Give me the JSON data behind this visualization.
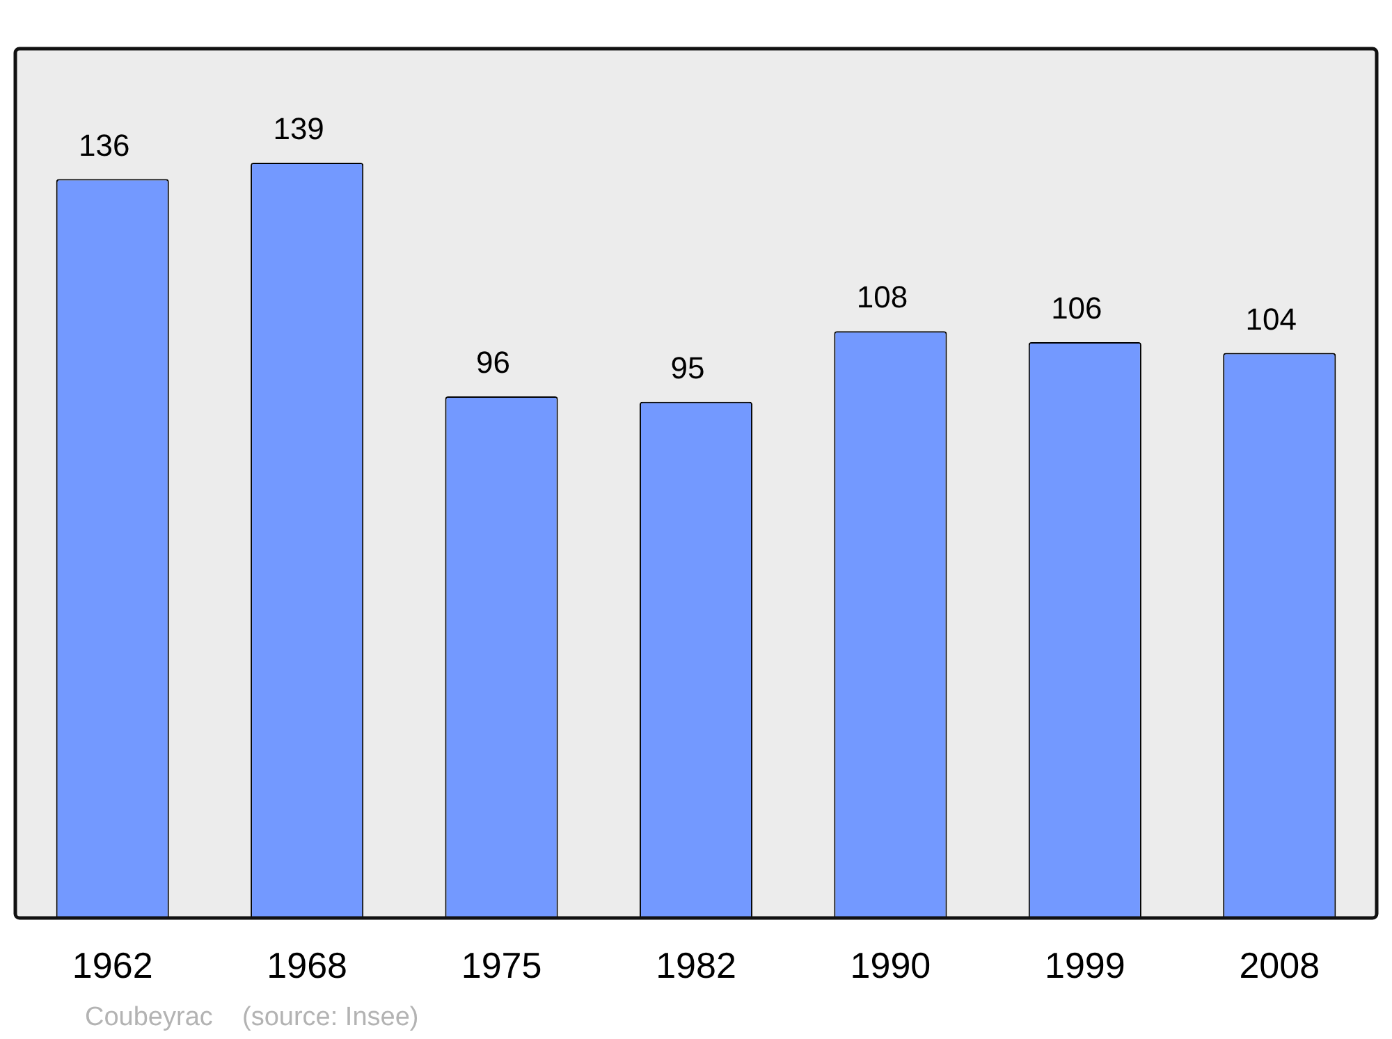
{
  "chart_data": {
    "type": "bar",
    "categories": [
      "1962",
      "1968",
      "1975",
      "1982",
      "1990",
      "1999",
      "2008"
    ],
    "values": [
      136,
      139,
      96,
      95,
      108,
      106,
      104
    ],
    "color": "#7399ff",
    "data_labels": true,
    "grid": false,
    "legend": false,
    "annotations": [
      "Coubeyrac    (source: Insee)"
    ]
  }
}
